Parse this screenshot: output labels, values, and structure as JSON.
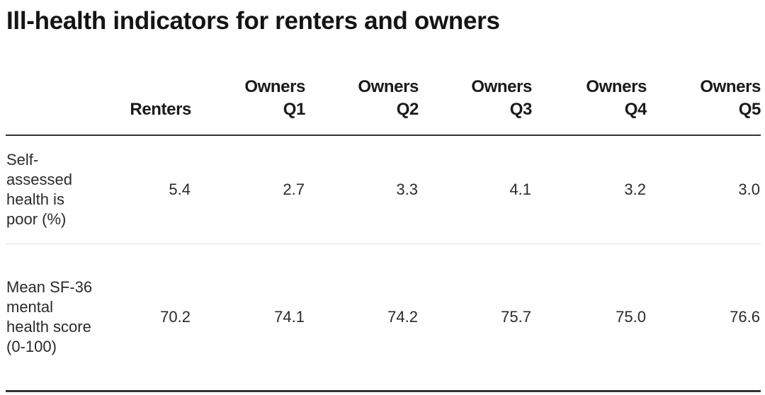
{
  "title": "Ill-health indicators for renters and owners",
  "chart_data": {
    "type": "table",
    "title": "Ill-health indicators for renters and owners",
    "columns": [
      {
        "line1": "",
        "line2": "Renters"
      },
      {
        "line1": "Owners",
        "line2": "Q1"
      },
      {
        "line1": "Owners",
        "line2": "Q2"
      },
      {
        "line1": "Owners",
        "line2": "Q3"
      },
      {
        "line1": "Owners",
        "line2": "Q4"
      },
      {
        "line1": "Owners",
        "line2": "Q5"
      }
    ],
    "rows": [
      {
        "label": "Self-assessed health is poor (%)",
        "values": [
          "5.4",
          "2.7",
          "3.3",
          "4.1",
          "3.2",
          "3.0"
        ]
      },
      {
        "label": "Mean SF-36 mental health score (0-100)",
        "values": [
          "70.2",
          "74.1",
          "74.2",
          "75.7",
          "75.0",
          "76.6"
        ]
      }
    ]
  }
}
